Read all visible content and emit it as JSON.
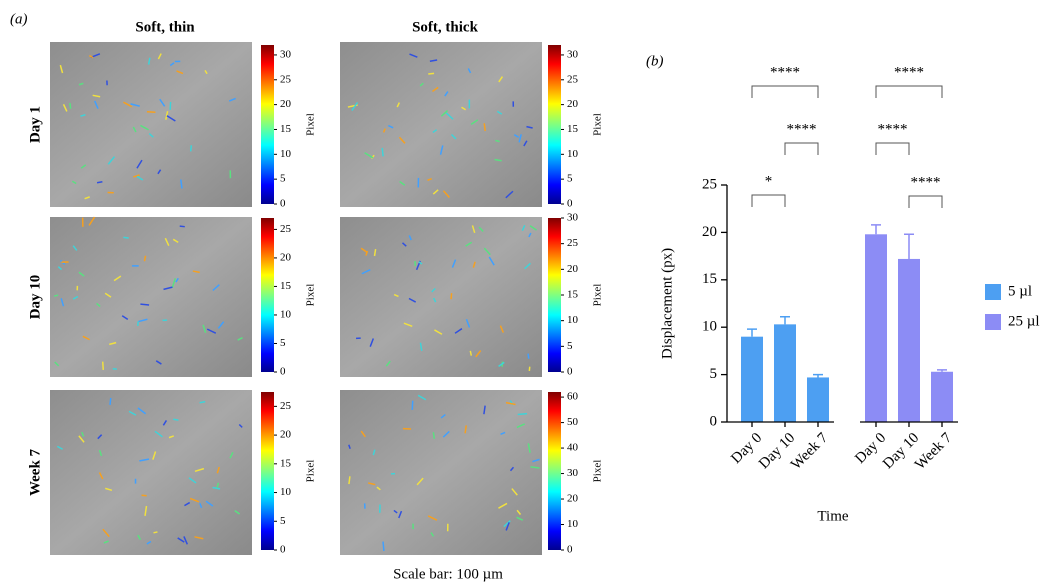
{
  "panel_a": {
    "label": "(a)",
    "columns": [
      "Soft, thin",
      "Soft, thick"
    ],
    "rows": [
      "Day 1",
      "Day 10",
      "Week 7"
    ],
    "colorbar_label": "Pixel",
    "colorbars": [
      [
        {
          "lim": [
            0,
            32
          ],
          "ticks": [
            0,
            5,
            10,
            15,
            20,
            25,
            30
          ]
        },
        {
          "lim": [
            0,
            32
          ],
          "ticks": [
            0,
            5,
            10,
            15,
            20,
            25,
            30
          ]
        }
      ],
      [
        {
          "lim": [
            0,
            27
          ],
          "ticks": [
            0,
            5,
            10,
            15,
            20,
            25
          ]
        },
        {
          "lim": [
            0,
            30
          ],
          "ticks": [
            0,
            5,
            10,
            15,
            20,
            25,
            30
          ]
        }
      ],
      [
        {
          "lim": [
            0,
            27.5
          ],
          "ticks": [
            0,
            5,
            10,
            15,
            20,
            25
          ]
        },
        {
          "lim": [
            0,
            62
          ],
          "ticks": [
            0,
            10,
            20,
            30,
            40,
            50,
            60
          ]
        }
      ]
    ],
    "scale_bar": "Scale bar: 100 µm"
  },
  "chart_data": {
    "type": "bar",
    "panel_label": "(b)",
    "x_label": "Time",
    "y_label": "Displacement (px)",
    "categories": [
      "Day 0",
      "Day 10",
      "Week 7"
    ],
    "series": [
      {
        "name": "5 µl",
        "color": "#4d9ff2",
        "values": [
          9,
          10.3,
          4.7
        ],
        "errors": [
          0.8,
          0.8,
          0.3
        ]
      },
      {
        "name": "25 µl",
        "color": "#8c8cf5",
        "values": [
          19.8,
          17.2,
          5.3
        ],
        "errors": [
          1.0,
          2.6,
          0.2
        ]
      }
    ],
    "ylim": [
      0,
      25
    ],
    "yticks": [
      0,
      5,
      10,
      15,
      20,
      25
    ],
    "significance": [
      {
        "series": 0,
        "pair": [
          0,
          2
        ],
        "label": "****"
      },
      {
        "series": 0,
        "pair": [
          1,
          2
        ],
        "label": "****"
      },
      {
        "series": 0,
        "pair": [
          0,
          1
        ],
        "label": "*"
      },
      {
        "series": 1,
        "pair": [
          0,
          2
        ],
        "label": "****"
      },
      {
        "series": 1,
        "pair": [
          0,
          1
        ],
        "label": "****"
      },
      {
        "series": 1,
        "pair": [
          1,
          2
        ],
        "label": "****"
      }
    ]
  }
}
